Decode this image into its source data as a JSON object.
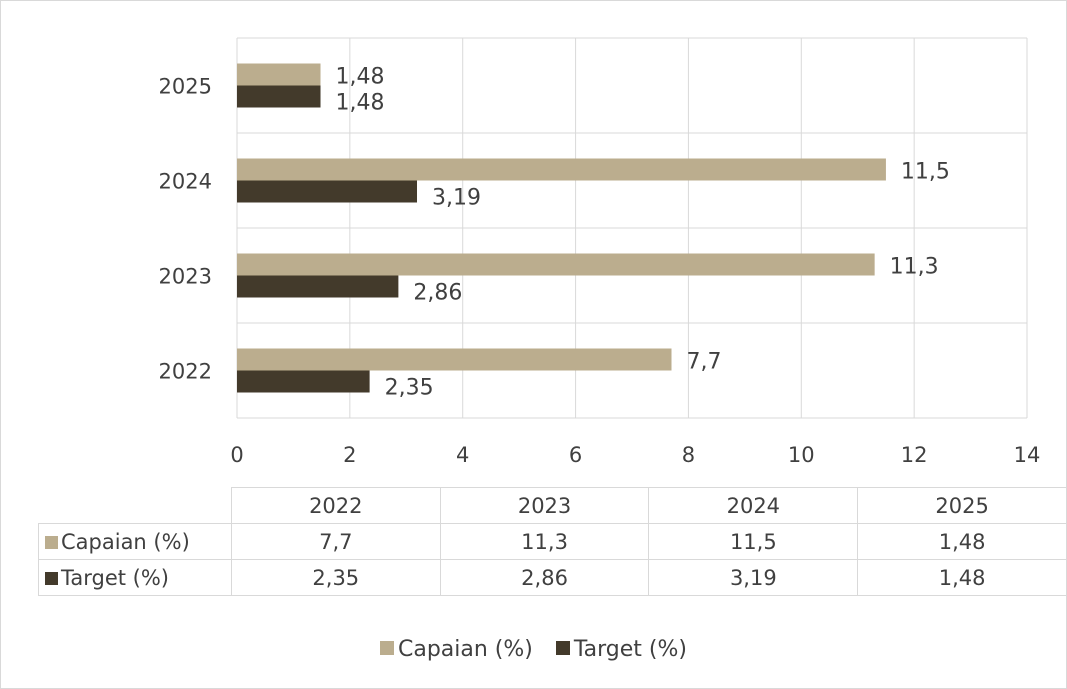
{
  "colors": {
    "capaian": "#bbad8e",
    "target": "#433a2b",
    "grid": "#d9d9d9",
    "text": "#404040"
  },
  "chart_data": {
    "type": "bar",
    "orientation": "horizontal",
    "categories": [
      "2022",
      "2023",
      "2024",
      "2025"
    ],
    "series": [
      {
        "name": "Capaian (%)",
        "values": [
          7.7,
          11.3,
          11.5,
          1.48
        ],
        "labels": [
          "7,7",
          "11,3",
          "11,5",
          "1,48"
        ]
      },
      {
        "name": "Target (%)",
        "values": [
          2.35,
          2.86,
          3.19,
          1.48
        ],
        "labels": [
          "2,35",
          "2,86",
          "3,19",
          "1,48"
        ]
      }
    ],
    "xlim": [
      0,
      14
    ],
    "x_ticks": [
      "0",
      "2",
      "4",
      "6",
      "8",
      "10",
      "12",
      "14"
    ],
    "grid": true,
    "legend": "bottom",
    "data_table": true
  }
}
